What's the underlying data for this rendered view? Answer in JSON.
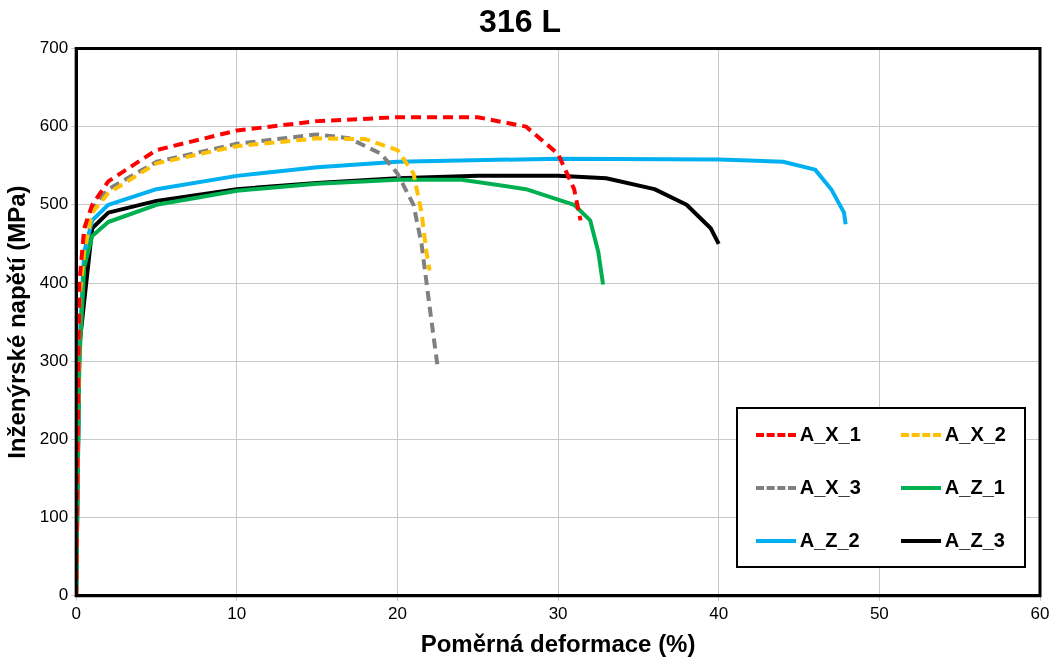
{
  "chart_data": {
    "type": "line",
    "title": "316 L",
    "xlabel": "Poměrná deformace (%)",
    "ylabel": "Inženýrské napětí (MPa)",
    "xlim": [
      0,
      60
    ],
    "xticks": [
      0,
      10,
      20,
      30,
      40,
      50,
      60
    ],
    "ylim": [
      0,
      700
    ],
    "yticks": [
      0,
      100,
      200,
      300,
      400,
      500,
      600,
      700
    ],
    "grid": true,
    "legend": "bottom right",
    "marker": "none",
    "series": [
      {
        "name": "A_X_1",
        "color": "#ff0000",
        "line_style": "dashed",
        "x": [
          0,
          0.2,
          0.5,
          1,
          2,
          5,
          10,
          15,
          20,
          25,
          28,
          30,
          31,
          31.4
        ],
        "values": [
          0,
          400,
          470,
          500,
          530,
          570,
          595,
          607,
          612,
          612,
          600,
          565,
          520,
          480
        ]
      },
      {
        "name": "A_X_2",
        "color": "#ffc000",
        "line_style": "dashed",
        "x": [
          0,
          0.2,
          0.5,
          1,
          2,
          5,
          10,
          15,
          18,
          20,
          21,
          21.5,
          21.8,
          22
        ],
        "values": [
          0,
          380,
          440,
          490,
          515,
          553,
          575,
          585,
          584,
          570,
          540,
          490,
          440,
          416
        ]
      },
      {
        "name": "A_X_3",
        "color": "#808080",
        "line_style": "dashed",
        "x": [
          0,
          0.2,
          0.5,
          1,
          2,
          5,
          10,
          15,
          17,
          19,
          20,
          21,
          21.5,
          22,
          22.5
        ],
        "values": [
          0,
          380,
          445,
          495,
          520,
          555,
          578,
          590,
          585,
          565,
          540,
          500,
          450,
          370,
          293
        ]
      },
      {
        "name": "A_Z_1",
        "color": "#00b050",
        "line_style": "solid",
        "x": [
          0,
          0.2,
          0.5,
          1,
          2,
          5,
          10,
          15,
          20,
          24,
          28,
          31,
          32,
          32.5,
          32.8
        ],
        "values": [
          0,
          300,
          420,
          460,
          478,
          500,
          518,
          527,
          532,
          532,
          520,
          500,
          480,
          440,
          398
        ]
      },
      {
        "name": "A_Z_2",
        "color": "#00b0f0",
        "line_style": "solid",
        "x": [
          0,
          0.2,
          0.5,
          1,
          2,
          5,
          10,
          15,
          20,
          30,
          40,
          44,
          46,
          47,
          47.8,
          47.9
        ],
        "values": [
          0,
          320,
          440,
          480,
          500,
          520,
          537,
          548,
          555,
          559,
          558,
          555,
          545,
          520,
          490,
          475
        ]
      },
      {
        "name": "A_Z_3",
        "color": "#000000",
        "line_style": "solid",
        "x": [
          0,
          0.2,
          1,
          2,
          5,
          10,
          15,
          20,
          25,
          30,
          33,
          36,
          38,
          39.5,
          40
        ],
        "values": [
          0,
          320,
          470,
          490,
          505,
          520,
          528,
          534,
          537,
          537,
          534,
          520,
          500,
          470,
          450
        ]
      }
    ]
  }
}
